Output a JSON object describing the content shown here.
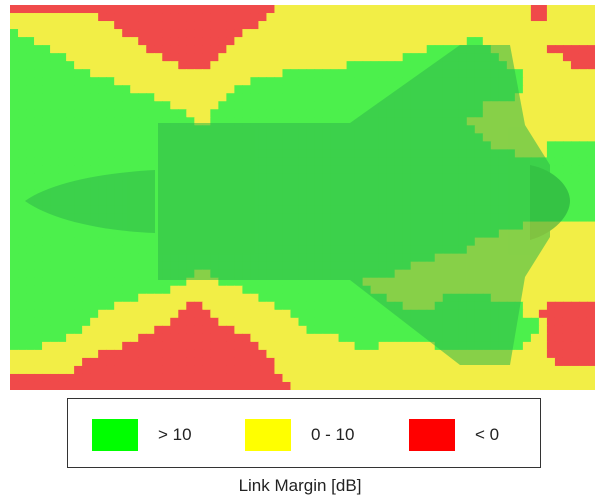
{
  "chart_data": {
    "type": "heatmap",
    "title": "",
    "xlabel": "",
    "ylabel": "",
    "cell_codes": {
      "g": "> 10",
      "y": "0 - 10",
      "r": "< 0"
    },
    "rows": [
      "rrrrrrrrrrrrrrrrrrrrrrrrrrrrrrrrryyyyyyyyyyyyyyyyyyyyyyyyyyyyyyyyrryyyy",
      "yyyyyyyyyyyrrrrrrrrrrrrrrrrrrrrryyyyyyyyyyyyyyyyyyyyyyyyyyyyyyyyyrryyyy",
      "yyyyyyyyyyyyyrrrrrrrrrrrrrrrrrryyyyyyyyyyyyyyyyyyyyyyyyyyyyyyyyyyyyyyyy",
      "gyyyyyyyyyyyyyrrrrrrrrrrrrrrryyyyyyyyyyyyyyyyyyyyyyyyyyyyyyyyyyyyyyyyyyyy",
      "gggyyyyyyyyyyyyyrrrrrrrrrrrryyyyyyyyyyyyyyyyyyyyyyyyyyyyyggyyyyyyyyyyyy",
      "gggggyyyyyyyyyyyyrrrrrrrrrryyyyyyyyyyyyyyyyyyyyyyyyyggggggggyyyyyyyrrrr",
      "gggggggyyyyyyyyyyyyrrrrrrryyyyyyyyyyyyyyyyyyyyyyyggggggggggggyyyyyyyyrrr",
      "ggggggggyyyyyyyyyyyyyrrrryyyyyyyyyyyyyyyyyggggggggggggggggggggyyyyyyyyrr",
      "ggggggggggyyyyyyyyyyyyyyyyyyyyyyyyggggggggggggggggggggggggggggggyyyyyyyy",
      "gggggggggggggyyyyyyyyyyyyyyyyyggggggggggggggggggggggggggggggggggyyyyyyyy",
      "gggggggggggggggyyyyyyyyyyyyyggggggggggggggggggggggggggggggggggggyyyyyyyy",
      "ggggggggggggggggggyyyyyyyyyggggggggggggggggggggggggggggggggggggyyyyyyyyyy",
      "ggggggggggggggggggggyyyyyygggggggggggggggggggggggggggggggggyyyyyyyyyyyyy",
      "ggggggggggggggggggggggyyyggggggggggggggggggggggggggggggggggyyyyyyyyyyyyy",
      "gggggggggggggggggggggggyyggggggggggggggggggggggggggggggggyyyyyyyyyyyyyyy",
      "ggggggggggggggggggggggggggggggggggggggggggggggggggggggggggyyyyyyyyyyyyyy",
      "gggggggggggggggggggggggggggggggggggggggggggggggggggggggggggyyyyyyyyyyyyy",
      "ggggggggggggggggggggggggggggggggggggggggggggggggggggggggggggyyyyyyyggggg",
      "gggggggggggggggggggggggggggggggggggggggggggggggggggggggggggggggyyyyggggg",
      "gggggggggggggggggggggggggggggggggggggggggggggggggggggggggggggggggggggggg",
      "gggggggggggggggggggggggggggggggggggggggggggggggggggggggggggggggggggggggg",
      "gggggggggggggggggggggggggggggggggggggggggggggggggggggggggggggggggggggggg",
      "gggggggggggggggggggggggggggggggggggggggggggggggggggggggggggggggggggggggg",
      "gggggggggggggggggggggggggggggggggggggggggggggggggggggggggggggggggggggggg",
      "gggggggggggggggggggggggggggggggggggggggggggggggggggggggggggggggggggggggg",
      "gggggggggggggggggggggggggggggggggggggggggggggggggggggggggggggggggggggggg",
      "gggggggggggggggggggggggggggggggggggggggggggggggggggggggggggggggggggggggg",
      "ggggggggggggggggggggggggggggggggggggggggggggggggggggggggggggggggyyyyyyyy",
      "gggggggggggggggggggggggggggggggggggggggggggggggggggggggggggggyyyyyyyyyyy",
      "ggggggggggggggggggggggggggggggggggggggggggggggggggggggggggyyyyyyyyyyyyyy",
      "gggggggggggggggggggggggggggggggggggggggggggggggggggggggggyyyyyyyyyyyyyyy",
      "gggggggggggggggggggggggggggggggggggggggggggggggggggggyyyyyyyyyyyyyyyyyyy",
      "ggggggggggggggggggggggggggggggggggggggggggggggggggyyyyyyyyyyyyyyyyyyyyyy",
      "gggggggggggggggggggggggyygggggggggggggggggggggggyyyyyyyyyyyyyyyyyyyyyyyyy",
      "ggggggggggggggggggggggyyyyggggggggggggggggggyyyyyyyyyyyyyyyyyyyyyyyyyyy",
      "ggggggggggggggggggggyyyyyyyyyggggggggggggggggyyyyyyyyyyyyyyyyyyyyyyyyyyy",
      "ggggggggggggggggyyyyyyyyyyyyyyyggggggggggggggggyyyyyyyggggggyyyyyyyyyyyy",
      "gggggggggggggyyyyyyyyyrryyyyyyyyyggggggggggggggggyyyygggggggggggyyyrrrrr",
      "gggggggggggyyyyyyyyyyrrrryyyyyyyyyygggggggggggggggggggggggggggggyyrrrrrr",
      "ggggggggggyyyyyyyyyyrrrrrryyyyyyyyyyggggggggggggggggggggggggggggggyrrrrrr",
      "gggggggggyyyyyyyyyrrrrrrrrrryyyyyyyyygggggggggggggggggggggggggggggyrrrrr",
      "gggggggyyyyyyyyyrrrrrrrrrrrrrryyyyyyyyyyyggggggggggggggggggggggggyyrrrrrr",
      "ggggyyyyyyyyyyrrrrrrrrrrrrrrrrryyyyyyyyyyyygggyyyyyyygggggggggggyyyrrrrr",
      "yyyyyyyyyyyrrrrrrrrrrrrrrrrrrrrryyyyyyyyyyyyyyyyyyyyyyyyyyyyyyyyyyyrrrrr",
      "yyyyyyyyyrrrrrrrrrrrrrrrrrrrrrrrryyyyyyyyyyyyyyyyyyyyyyyyyyyyyyyyyyyrrrr",
      "yyyyyyyyrrrrrrrrrrrrrrrrrrrrrrrrryyyyyyyyyyyyyyyyyyyyyyyyyyyyyyyyyyyyyyy",
      "rrrrrrrrrrrrrrrrrrrrrrrrrrrrrrrrrryyyyyyyyyyyyyyyyyyyyyyyyyyyyyyyyyyyyyy",
      "rrrrrrrrrrrrrrrrrrrrrrrrrrrrrrrrrrryyyyyyyyyyyyyyyyyyyyyyyyyyyyyyyyyyyyy"
    ],
    "legend": {
      "items": [
        {
          "label": "> 10",
          "color": "#00ff00"
        },
        {
          "label": "0 - 10",
          "color": "#ffff00"
        },
        {
          "label": "< 0",
          "color": "#ff0000"
        }
      ],
      "title": "Link Margin [dB]",
      "placement": "bottom"
    },
    "colors": {
      "g": "#4cf04c",
      "y": "#f2ee46",
      "r": "#f04a4a",
      "aircraft": "#2fb84a"
    }
  }
}
